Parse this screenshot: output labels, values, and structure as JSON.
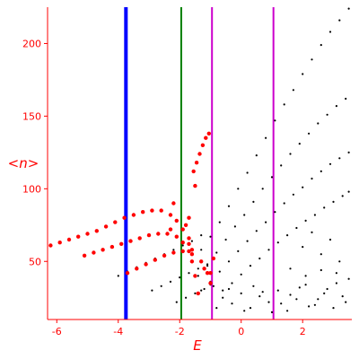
{
  "chart_data": {
    "type": "scatter",
    "title": "",
    "xlabel": "E",
    "ylabel": "<n>",
    "xlim": [
      -6.3,
      3.6
    ],
    "ylim": [
      10,
      225
    ],
    "xticks": [
      -6,
      -4,
      -2,
      0,
      2
    ],
    "yticks": [
      50,
      100,
      150,
      200
    ],
    "grid": false,
    "colors": {
      "axis": "#ff0000",
      "black_points": "#000000",
      "red_points": "#ff0000",
      "blue_line": "#0000ff",
      "green_line": "#008000",
      "magenta_line": "#cc00cc"
    },
    "vertical_lines": [
      {
        "x": -3.75,
        "color": "#0000ff"
      },
      {
        "x": -1.95,
        "color": "#008000"
      },
      {
        "x": -0.95,
        "color": "#cc00cc"
      },
      {
        "x": 1.05,
        "color": "#cc00cc"
      }
    ],
    "series": [
      {
        "color": "#000000",
        "points": [
          [
            -1.6,
            50
          ],
          [
            -1.3,
            58
          ],
          [
            -1.0,
            67
          ],
          [
            -0.7,
            77
          ],
          [
            -0.4,
            88
          ],
          [
            -0.1,
            100
          ],
          [
            0.2,
            111
          ],
          [
            0.5,
            123
          ],
          [
            0.8,
            135
          ],
          [
            1.1,
            147
          ],
          [
            1.4,
            158
          ],
          [
            1.7,
            168
          ],
          [
            2.0,
            179
          ],
          [
            2.3,
            189
          ],
          [
            2.6,
            199
          ],
          [
            2.9,
            208
          ],
          [
            3.2,
            216
          ],
          [
            3.5,
            224
          ]
        ]
      },
      {
        "color": "#000000",
        "points": [
          [
            -1.4,
            40
          ],
          [
            -1.1,
            48
          ],
          [
            -0.8,
            56
          ],
          [
            -0.5,
            65
          ],
          [
            -0.2,
            74
          ],
          [
            0.1,
            82
          ],
          [
            0.4,
            91
          ],
          [
            0.7,
            100
          ],
          [
            1.0,
            108
          ],
          [
            1.3,
            116
          ],
          [
            1.6,
            124
          ],
          [
            1.9,
            131
          ],
          [
            2.2,
            138
          ],
          [
            2.5,
            145
          ],
          [
            2.8,
            151
          ],
          [
            3.1,
            157
          ],
          [
            3.4,
            162
          ]
        ]
      },
      {
        "color": "#000000",
        "points": [
          [
            -1.0,
            36
          ],
          [
            -0.7,
            43
          ],
          [
            -0.4,
            50
          ],
          [
            -0.1,
            57
          ],
          [
            0.2,
            64
          ],
          [
            0.5,
            71
          ],
          [
            0.8,
            77
          ],
          [
            1.1,
            84
          ],
          [
            1.4,
            90
          ],
          [
            1.7,
            96
          ],
          [
            2.0,
            101
          ],
          [
            2.3,
            107
          ],
          [
            2.6,
            112
          ],
          [
            2.9,
            117
          ],
          [
            3.2,
            121
          ],
          [
            3.5,
            125
          ]
        ]
      },
      {
        "color": "#000000",
        "points": [
          [
            -0.6,
            30
          ],
          [
            -0.3,
            35
          ],
          [
            0.0,
            41
          ],
          [
            0.3,
            47
          ],
          [
            0.6,
            52
          ],
          [
            0.9,
            58
          ],
          [
            1.2,
            63
          ],
          [
            1.5,
            68
          ],
          [
            1.8,
            73
          ],
          [
            2.1,
            78
          ],
          [
            2.4,
            82
          ],
          [
            2.7,
            87
          ],
          [
            3.0,
            91
          ],
          [
            3.3,
            95
          ],
          [
            3.5,
            98
          ]
        ]
      },
      {
        "color": "#000000",
        "points": [
          [
            -4.0,
            40
          ],
          [
            -3.7,
            43
          ],
          [
            -3.4,
            46
          ],
          [
            -3.1,
            49
          ],
          [
            -2.8,
            52
          ],
          [
            -2.5,
            55
          ],
          [
            -2.2,
            58
          ],
          [
            -1.9,
            61
          ],
          [
            -1.6,
            64
          ],
          [
            -1.3,
            68
          ]
        ]
      },
      {
        "color": "#000000",
        "points": [
          [
            -2.9,
            30
          ],
          [
            -2.6,
            33
          ],
          [
            -2.3,
            36
          ],
          [
            -2.0,
            39
          ],
          [
            -1.7,
            42
          ],
          [
            -1.4,
            45
          ],
          [
            -1.1,
            47
          ]
        ]
      },
      {
        "color": "#000000",
        "points": [
          [
            -2.1,
            22
          ],
          [
            -1.8,
            25
          ],
          [
            -1.5,
            28
          ],
          [
            -1.2,
            31
          ],
          [
            -0.9,
            33
          ]
        ]
      },
      {
        "color": "#000000",
        "points": [
          [
            -1.3,
            30
          ],
          [
            -1.0,
            34
          ],
          [
            -0.6,
            25
          ],
          [
            -0.3,
            21
          ],
          [
            0.0,
            28
          ],
          [
            0.3,
            18
          ],
          [
            0.6,
            26
          ],
          [
            0.9,
            22
          ],
          [
            1.2,
            30
          ],
          [
            1.5,
            16
          ],
          [
            1.8,
            24
          ],
          [
            2.1,
            34
          ],
          [
            2.4,
            20
          ],
          [
            2.7,
            28
          ],
          [
            3.0,
            18
          ],
          [
            3.3,
            26
          ],
          [
            -0.8,
            18
          ],
          [
            0.4,
            33
          ],
          [
            1.0,
            15
          ],
          [
            1.6,
            27
          ],
          [
            2.2,
            19
          ],
          [
            2.8,
            31
          ],
          [
            3.4,
            22
          ],
          [
            0.1,
            16
          ],
          [
            0.7,
            29
          ],
          [
            1.3,
            21
          ],
          [
            1.9,
            32
          ],
          [
            2.5,
            24
          ],
          [
            3.1,
            35
          ],
          [
            -0.4,
            31
          ],
          [
            2.0,
            60
          ],
          [
            2.3,
            70
          ],
          [
            2.6,
            55
          ],
          [
            2.9,
            65
          ],
          [
            3.2,
            50
          ],
          [
            1.6,
            45
          ],
          [
            2.1,
            40
          ],
          [
            2.6,
            44
          ],
          [
            3.1,
            42
          ],
          [
            3.5,
            38
          ]
        ]
      },
      {
        "color": "#ff0000",
        "points": [
          [
            -6.2,
            61
          ],
          [
            -5.9,
            63
          ],
          [
            -5.6,
            65
          ],
          [
            -5.3,
            67
          ],
          [
            -5.0,
            69
          ],
          [
            -4.7,
            71
          ],
          [
            -4.4,
            74
          ],
          [
            -4.1,
            77
          ],
          [
            -3.8,
            80
          ],
          [
            -3.5,
            82
          ],
          [
            -3.2,
            84
          ],
          [
            -2.9,
            85
          ],
          [
            -2.6,
            85
          ],
          [
            -2.3,
            82
          ],
          [
            -2.1,
            78
          ],
          [
            -1.9,
            72
          ],
          [
            -1.7,
            66
          ],
          [
            -1.6,
            58
          ]
        ]
      },
      {
        "color": "#ff0000",
        "points": [
          [
            -5.1,
            54
          ],
          [
            -4.8,
            56
          ],
          [
            -4.5,
            58
          ],
          [
            -4.2,
            60
          ],
          [
            -3.9,
            62
          ],
          [
            -3.6,
            64
          ],
          [
            -3.3,
            66
          ],
          [
            -3.0,
            68
          ],
          [
            -2.7,
            69
          ],
          [
            -2.4,
            69
          ],
          [
            -2.1,
            67
          ],
          [
            -1.9,
            63
          ],
          [
            -1.7,
            57
          ],
          [
            -1.6,
            50
          ]
        ]
      },
      {
        "color": "#ff0000",
        "points": [
          [
            -3.7,
            42
          ],
          [
            -3.4,
            45
          ],
          [
            -3.1,
            48
          ],
          [
            -2.8,
            51
          ],
          [
            -2.5,
            54
          ],
          [
            -2.2,
            56
          ],
          [
            -1.9,
            57
          ],
          [
            -1.6,
            55
          ],
          [
            -1.3,
            50
          ],
          [
            -1.1,
            42
          ],
          [
            -1.0,
            35
          ]
        ]
      },
      {
        "color": "#ff0000",
        "points": [
          [
            -1.55,
            112
          ],
          [
            -1.45,
            118
          ],
          [
            -1.35,
            124
          ],
          [
            -1.25,
            130
          ],
          [
            -1.15,
            135
          ],
          [
            -1.05,
            138
          ],
          [
            -1.5,
            102
          ],
          [
            -1.7,
            80
          ],
          [
            -1.8,
            75
          ],
          [
            -2.3,
            72
          ],
          [
            -2.2,
            90
          ],
          [
            -1.7,
            62
          ],
          [
            -1.5,
            40
          ],
          [
            -1.4,
            28
          ],
          [
            -1.2,
            45
          ],
          [
            -1.0,
            42
          ],
          [
            -0.9,
            52
          ]
        ]
      }
    ]
  }
}
